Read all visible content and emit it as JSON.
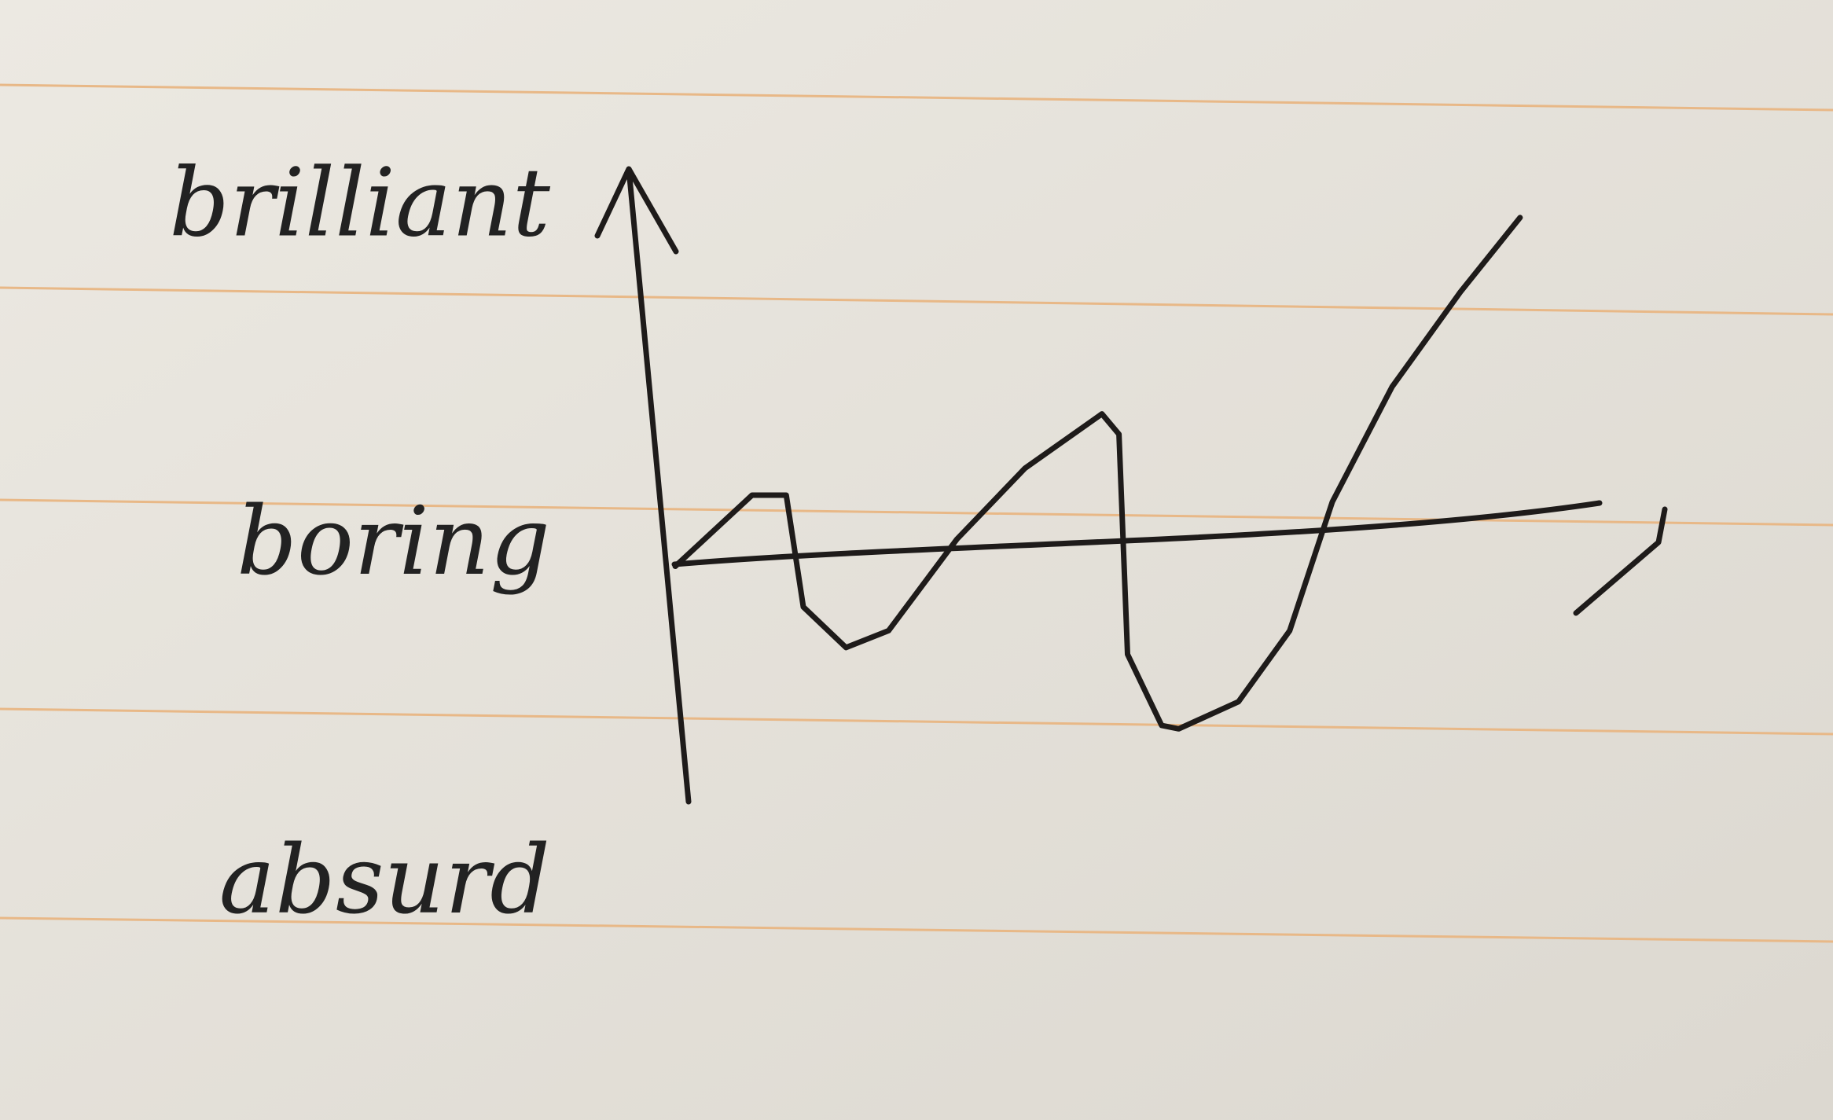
{
  "chart_data": {
    "type": "line",
    "x": [
      0.1,
      1.0,
      1.4,
      1.6,
      2.1,
      2.6,
      3.4,
      4.2,
      5.1,
      5.3,
      5.4,
      5.8,
      6.0,
      6.7,
      7.3,
      7.8,
      8.5,
      9.3,
      10.0
    ],
    "values": [
      -0.05,
      0.16,
      0.16,
      -0.17,
      -0.29,
      -0.24,
      0.03,
      0.24,
      0.4,
      0.34,
      -0.31,
      -0.52,
      -0.53,
      -0.45,
      -0.24,
      0.14,
      0.48,
      0.76,
      0.98
    ],
    "color": "#1e1b1a",
    "xlim": [
      -0.5,
      12
    ],
    "ylim": [
      -1.3,
      1.2
    ],
    "yticks": [
      {
        "value": 1,
        "label": "brilliant"
      },
      {
        "value": 0,
        "label": "boring"
      },
      {
        "value": -1,
        "label": "absurd"
      }
    ]
  }
}
